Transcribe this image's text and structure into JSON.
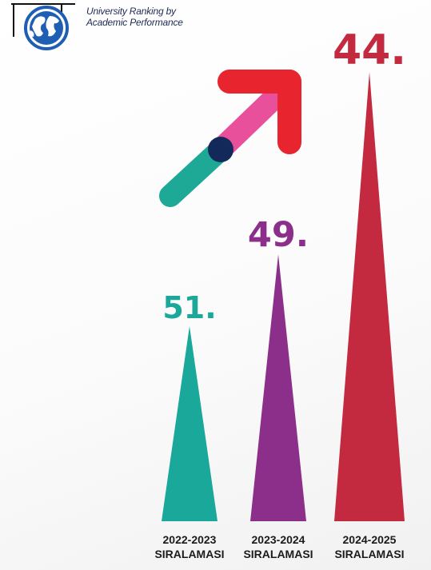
{
  "logo": {
    "line1": "University Ranking by",
    "line2": "Academic Performance"
  },
  "colors": {
    "teal": "#1aa89a",
    "purple": "#8b2f8a",
    "red": "#c42a3f",
    "arrow_pink": "#e8509c",
    "arrow_red": "#e8252e",
    "arrow_teal": "#1ea896",
    "arrow_navy": "#13295a",
    "globe_blue": "#1e5fb3"
  },
  "chart_data": {
    "type": "bar",
    "title": "",
    "categories": [
      [
        "2022-2023",
        "SIRALAMASI"
      ],
      [
        "2023-2024",
        "SIRALAMASI"
      ],
      [
        "2024-2025",
        "SIRALAMASI"
      ]
    ],
    "series": [
      {
        "values": [
          51,
          49,
          44
        ],
        "labels": [
          "51.",
          "49.",
          "44."
        ],
        "colors": [
          "#1aa89a",
          "#8b2f8a",
          "#c42a3f"
        ]
      }
    ],
    "bar_shape": "triangle (spike)",
    "value_axis": "rank (lower is better; taller spike = better rank)"
  }
}
